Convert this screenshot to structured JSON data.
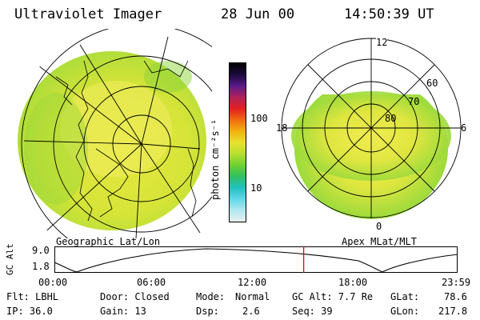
{
  "header": {
    "instrument": "Ultraviolet Imager",
    "date": "28 Jun 00",
    "time": "14:50:39 UT"
  },
  "left_panel": {
    "label": "Geographic Lat/Lon"
  },
  "right_panel": {
    "label": "Apex MLat/MLT",
    "mlt_labels": {
      "top": "12",
      "left": "18",
      "right": "6",
      "bottom": "0"
    },
    "lat_labels": [
      "60",
      "70",
      "80"
    ]
  },
  "colorbar": {
    "unit": "photon cm⁻²s⁻¹",
    "ticks": [
      "100",
      "10"
    ],
    "colors": [
      "#000000",
      "#1a0a3a",
      "#5a1a8a",
      "#b0205a",
      "#e02020",
      "#f06a10",
      "#f2b010",
      "#e8e030",
      "#b8e030",
      "#70d030",
      "#30c060",
      "#20c0c0",
      "#60d8e8",
      "#b0e8f0",
      "#e8f0f0"
    ]
  },
  "timeline": {
    "ylabel": "GC Alt",
    "y_ticks": [
      "9.0",
      "1.8"
    ],
    "x_ticks": [
      "00:00",
      "06:00",
      "12:00",
      "18:00",
      "23:59"
    ],
    "marker_time_hours": 14.84,
    "marker_color": "#cc0000"
  },
  "info": {
    "flt": "Flt: LBHL",
    "ip": "IP: 36.0",
    "door": "Door: Closed",
    "gain": "Gain: 13",
    "mode_label": "Mode:",
    "mode_value": "Normal",
    "dsp_label": "Dsp:",
    "dsp_value": "2.6",
    "gcalt": "GC Alt: 7.7 Re",
    "seq": "Seq: 39",
    "glat": "GLat:",
    "glat_value": "78.6",
    "glon": "GLon:",
    "glon_value": "217.8"
  }
}
